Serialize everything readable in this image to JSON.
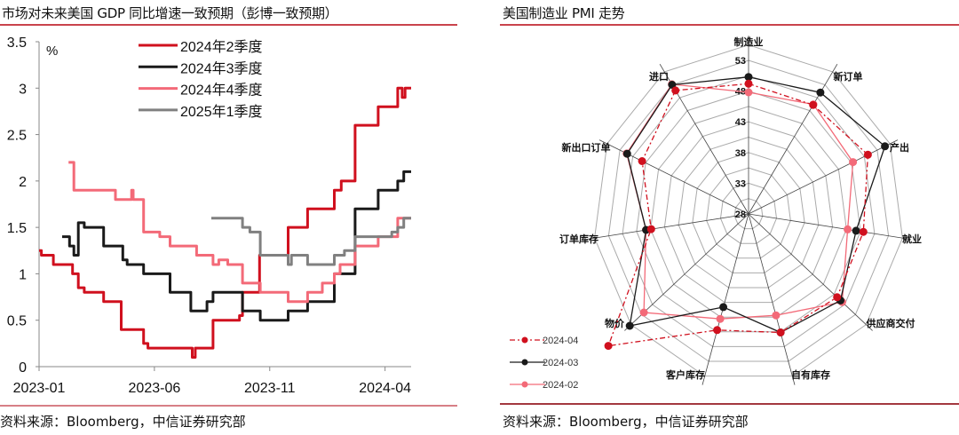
{
  "colors": {
    "q2": "#d0101e",
    "q3": "#1a1a1a",
    "q4": "#f36a78",
    "q1_2025": "#808080",
    "rule": "#c9444c",
    "grid": "#999999"
  },
  "left": {
    "title": "市场对未来美国 GDP 同比增速一致预期（彭博一致预期）",
    "source": "资料来源：Bloomberg，中信证券研究部"
  },
  "right": {
    "title": "美国制造业 PMI 走势",
    "source": "资料来源：Bloomberg，中信证券研究部"
  },
  "chart_data": [
    {
      "type": "line",
      "title": "市场对未来美国 GDP 同比增速一致预期（彭博一致预期）",
      "ylabel": "%",
      "ylim": [
        0,
        3.5
      ],
      "yticks": [
        "0",
        "0.5",
        "1",
        "1.5",
        "2",
        "2.5",
        "3",
        "3.5"
      ],
      "x_unit": "months since 2023-01",
      "xlim": [
        0,
        16.13
      ],
      "xticks": [
        {
          "x": 0,
          "label": "2023-01"
        },
        {
          "x": 5,
          "label": "2023-06"
        },
        {
          "x": 10,
          "label": "2023-11"
        },
        {
          "x": 15,
          "label": "2024-04"
        }
      ],
      "legend_position": "top-center",
      "series": [
        {
          "name": "2024年2季度",
          "color": "#d0101e",
          "step": true,
          "points": [
            [
              0,
              1.25
            ],
            [
              0.1,
              1.2
            ],
            [
              0.62,
              1.1
            ],
            [
              1.45,
              1.0
            ],
            [
              1.7,
              0.85
            ],
            [
              1.96,
              0.8
            ],
            [
              2.8,
              0.7
            ],
            [
              3.56,
              0.4
            ],
            [
              4.53,
              0.25
            ],
            [
              4.72,
              0.2
            ],
            [
              6.64,
              0.1
            ],
            [
              6.77,
              0.2
            ],
            [
              7.54,
              0.5
            ],
            [
              8.69,
              0.55
            ],
            [
              8.82,
              0.8
            ],
            [
              9.56,
              1.2
            ],
            [
              10.8,
              1.5
            ],
            [
              11.64,
              1.7
            ],
            [
              12.8,
              1.9
            ],
            [
              13.1,
              2.0
            ],
            [
              13.7,
              2.6
            ],
            [
              14.7,
              2.8
            ],
            [
              15.55,
              3.0
            ],
            [
              15.74,
              2.9
            ],
            [
              15.87,
              3.0
            ],
            [
              16.13,
              3.0
            ]
          ]
        },
        {
          "name": "2024年3季度",
          "color": "#1a1a1a",
          "step": true,
          "points": [
            [
              1.0,
              1.4
            ],
            [
              1.32,
              1.3
            ],
            [
              1.51,
              1.2
            ],
            [
              1.7,
              1.55
            ],
            [
              1.96,
              1.5
            ],
            [
              2.8,
              1.3
            ],
            [
              3.63,
              1.15
            ],
            [
              3.82,
              1.1
            ],
            [
              4.53,
              1.0
            ],
            [
              5.68,
              0.8
            ],
            [
              6.58,
              0.6
            ],
            [
              7.28,
              0.7
            ],
            [
              7.54,
              0.8
            ],
            [
              8.82,
              0.6
            ],
            [
              9.59,
              0.5
            ],
            [
              10.8,
              0.6
            ],
            [
              11.64,
              0.7
            ],
            [
              12.8,
              1.0
            ],
            [
              13.7,
              1.7
            ],
            [
              14.7,
              1.9
            ],
            [
              15.55,
              2.0
            ],
            [
              15.81,
              2.1
            ],
            [
              16.13,
              2.1
            ]
          ]
        },
        {
          "name": "2024年4季度",
          "color": "#f36a78",
          "step": true,
          "points": [
            [
              1.28,
              2.2
            ],
            [
              1.51,
              1.9
            ],
            [
              3.31,
              1.8
            ],
            [
              4.01,
              1.9
            ],
            [
              4.08,
              1.8
            ],
            [
              4.53,
              1.45
            ],
            [
              5.23,
              1.4
            ],
            [
              5.68,
              1.3
            ],
            [
              6.83,
              1.2
            ],
            [
              7.54,
              1.1
            ],
            [
              7.79,
              1.15
            ],
            [
              8.18,
              1.1
            ],
            [
              8.82,
              0.9
            ],
            [
              9.59,
              0.8
            ],
            [
              10.8,
              0.7
            ],
            [
              11.64,
              0.8
            ],
            [
              12.28,
              0.9
            ],
            [
              12.8,
              1.0
            ],
            [
              13.05,
              1.1
            ],
            [
              13.7,
              1.3
            ],
            [
              14.7,
              1.4
            ],
            [
              15.55,
              1.6
            ],
            [
              16.13,
              1.6
            ]
          ]
        },
        {
          "name": "2025年1季度",
          "color": "#808080",
          "step": true,
          "points": [
            [
              7.47,
              1.6
            ],
            [
              8.82,
              1.5
            ],
            [
              9.14,
              1.45
            ],
            [
              9.59,
              1.2
            ],
            [
              10.8,
              1.1
            ],
            [
              10.94,
              1.2
            ],
            [
              11.64,
              1.1
            ],
            [
              12.8,
              1.2
            ],
            [
              13.24,
              1.25
            ],
            [
              13.7,
              1.4
            ],
            [
              15.29,
              1.45
            ],
            [
              15.55,
              1.5
            ],
            [
              15.81,
              1.6
            ],
            [
              16.13,
              1.6
            ]
          ]
        }
      ]
    },
    {
      "type": "radar",
      "title": "美国制造业 PMI 走势",
      "rlim": [
        28,
        55.5
      ],
      "rticks": [
        "28",
        "33",
        "38",
        "43",
        "48",
        "53"
      ],
      "categories": [
        "制造业",
        "新订单",
        "产出",
        "就业",
        "供应商交付",
        "自有库存",
        "客户库存",
        "物价",
        "订单库存",
        "新出口订单",
        "进口"
      ],
      "legend_position": "bottom-left",
      "series": [
        {
          "name": "2024-04",
          "color": "#d0101e",
          "dash": "dash-dot",
          "values": [
            49.2,
            49.1,
            51.2,
            48.5,
            48.7,
            48.1,
            47.7,
            60.8,
            45.4,
            48.7,
            51.9
          ]
        },
        {
          "name": "2024-03",
          "color": "#1a1a1a",
          "dash": "solid",
          "values": [
            50.3,
            51.5,
            54.5,
            47.2,
            49.5,
            48.1,
            43.8,
            55.8,
            46.3,
            51.6,
            53.0
          ]
        },
        {
          "name": "2024-02",
          "color": "#f36a78",
          "dash": "solid",
          "values": [
            47.8,
            49.2,
            48.3,
            45.7,
            49.9,
            45.2,
            45.8,
            52.5,
            46.3,
            51.7,
            53.1
          ]
        }
      ]
    }
  ]
}
